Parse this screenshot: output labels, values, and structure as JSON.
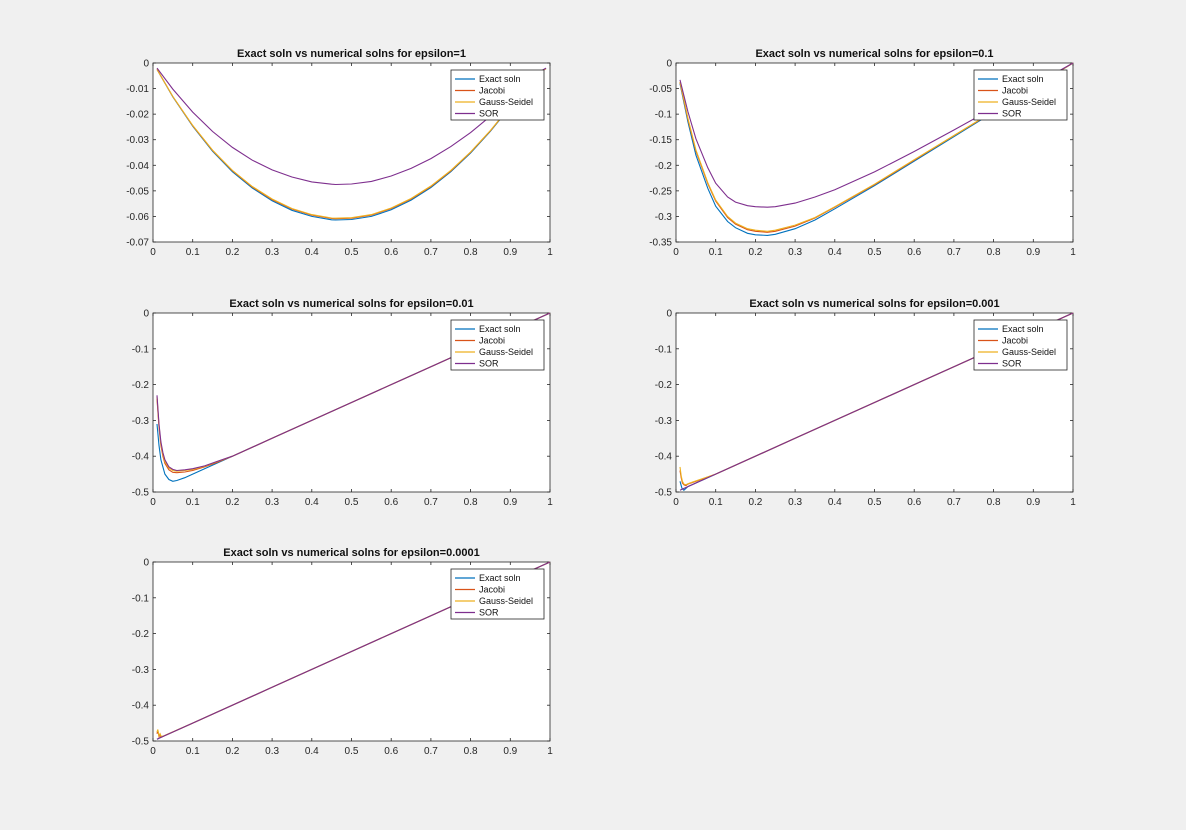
{
  "colors": {
    "background": "#f0f0f0",
    "axes_background": "#ffffff",
    "exact": "#0072BD",
    "jacobi": "#D95319",
    "gauss_seidel": "#EDB120",
    "sor": "#7E2F8E"
  },
  "chart_data": [
    {
      "type": "line",
      "title": "Exact soln vs numerical solns for epsilon=1",
      "xlim": [
        0,
        1
      ],
      "ylim": [
        -0.07,
        0
      ],
      "xticks": [
        "0",
        "0.1",
        "0.2",
        "0.3",
        "0.4",
        "0.5",
        "0.6",
        "0.7",
        "0.8",
        "0.9",
        "1"
      ],
      "yticks": [
        "0",
        "-0.01",
        "-0.02",
        "-0.03",
        "-0.04",
        "-0.05",
        "-0.06",
        "-0.07"
      ],
      "legend": [
        "Exact soln",
        "Jacobi",
        "Gauss-Seidel",
        "SOR"
      ],
      "legend_position": "top-right",
      "series": [
        {
          "name": "Exact soln",
          "x": [
            0.01,
            0.05,
            0.1,
            0.15,
            0.2,
            0.25,
            0.3,
            0.35,
            0.4,
            0.45,
            0.46,
            0.5,
            0.55,
            0.6,
            0.65,
            0.7,
            0.75,
            0.8,
            0.85,
            0.9,
            0.95,
            0.99
          ],
          "y": [
            -0.0025,
            -0.0132,
            -0.0247,
            -0.0345,
            -0.0425,
            -0.0489,
            -0.0539,
            -0.0576,
            -0.06,
            -0.0613,
            -0.0614,
            -0.0612,
            -0.06,
            -0.0574,
            -0.0536,
            -0.0487,
            -0.0425,
            -0.0352,
            -0.0267,
            -0.0171,
            -0.0064,
            -0.0022
          ]
        },
        {
          "name": "Jacobi",
          "x": [
            0.01,
            0.05,
            0.1,
            0.15,
            0.2,
            0.25,
            0.3,
            0.35,
            0.4,
            0.45,
            0.46,
            0.5,
            0.55,
            0.6,
            0.65,
            0.7,
            0.75,
            0.8,
            0.85,
            0.9,
            0.95,
            0.99
          ],
          "y": [
            -0.0025,
            -0.0131,
            -0.0245,
            -0.0342,
            -0.0421,
            -0.0485,
            -0.0534,
            -0.0571,
            -0.0595,
            -0.0608,
            -0.0609,
            -0.0607,
            -0.0595,
            -0.0569,
            -0.0532,
            -0.0483,
            -0.0422,
            -0.0349,
            -0.0265,
            -0.0169,
            -0.0063,
            -0.0022
          ]
        },
        {
          "name": "Gauss-Seidel",
          "x": [
            0.01,
            0.05,
            0.1,
            0.15,
            0.2,
            0.25,
            0.3,
            0.35,
            0.4,
            0.45,
            0.46,
            0.5,
            0.55,
            0.6,
            0.65,
            0.7,
            0.75,
            0.8,
            0.85,
            0.9,
            0.95,
            0.99
          ],
          "y": [
            -0.0025,
            -0.0131,
            -0.0244,
            -0.0341,
            -0.042,
            -0.0483,
            -0.0532,
            -0.0569,
            -0.0593,
            -0.0606,
            -0.0607,
            -0.0605,
            -0.0593,
            -0.0567,
            -0.053,
            -0.0481,
            -0.042,
            -0.0348,
            -0.0264,
            -0.0169,
            -0.0063,
            -0.0022
          ]
        },
        {
          "name": "SOR",
          "x": [
            0.01,
            0.05,
            0.1,
            0.15,
            0.2,
            0.25,
            0.3,
            0.35,
            0.4,
            0.45,
            0.46,
            0.5,
            0.55,
            0.6,
            0.65,
            0.7,
            0.75,
            0.8,
            0.85,
            0.9,
            0.95,
            0.99
          ],
          "y": [
            -0.002,
            -0.0102,
            -0.0192,
            -0.0268,
            -0.033,
            -0.038,
            -0.0418,
            -0.0446,
            -0.0465,
            -0.0474,
            -0.0475,
            -0.0473,
            -0.0463,
            -0.0442,
            -0.0412,
            -0.0374,
            -0.0327,
            -0.0272,
            -0.0208,
            -0.0135,
            -0.0055,
            -0.002
          ]
        }
      ]
    },
    {
      "type": "line",
      "title": "Exact soln vs numerical solns for epsilon=0.1",
      "xlim": [
        0,
        1
      ],
      "ylim": [
        -0.35,
        0
      ],
      "xticks": [
        "0",
        "0.1",
        "0.2",
        "0.3",
        "0.4",
        "0.5",
        "0.6",
        "0.7",
        "0.8",
        "0.9",
        "1"
      ],
      "yticks": [
        "0",
        "-0.05",
        "-0.1",
        "-0.15",
        "-0.2",
        "-0.25",
        "-0.3",
        "-0.35"
      ],
      "legend": [
        "Exact soln",
        "Jacobi",
        "Gauss-Seidel",
        "SOR"
      ],
      "legend_position": "top-right",
      "series": [
        {
          "name": "Exact soln",
          "x": [
            0.01,
            0.03,
            0.05,
            0.08,
            0.1,
            0.13,
            0.15,
            0.18,
            0.2,
            0.23,
            0.25,
            0.3,
            0.35,
            0.4,
            0.5,
            0.6,
            0.7,
            0.8,
            0.9,
            1.0
          ],
          "y": [
            -0.04,
            -0.115,
            -0.18,
            -0.245,
            -0.28,
            -0.31,
            -0.322,
            -0.333,
            -0.336,
            -0.337,
            -0.335,
            -0.324,
            -0.307,
            -0.285,
            -0.24,
            -0.192,
            -0.144,
            -0.096,
            -0.048,
            0.0
          ]
        },
        {
          "name": "Jacobi",
          "x": [
            0.01,
            0.03,
            0.05,
            0.08,
            0.1,
            0.13,
            0.15,
            0.18,
            0.2,
            0.23,
            0.25,
            0.3,
            0.35,
            0.4,
            0.5,
            0.6,
            0.7,
            0.8,
            0.9,
            1.0
          ],
          "y": [
            -0.038,
            -0.11,
            -0.172,
            -0.236,
            -0.27,
            -0.302,
            -0.315,
            -0.326,
            -0.329,
            -0.331,
            -0.329,
            -0.319,
            -0.303,
            -0.282,
            -0.238,
            -0.19,
            -0.142,
            -0.095,
            -0.047,
            0.0
          ]
        },
        {
          "name": "Gauss-Seidel",
          "x": [
            0.01,
            0.03,
            0.05,
            0.08,
            0.1,
            0.13,
            0.15,
            0.18,
            0.2,
            0.23,
            0.25,
            0.3,
            0.35,
            0.4,
            0.5,
            0.6,
            0.7,
            0.8,
            0.9,
            1.0
          ],
          "y": [
            -0.037,
            -0.108,
            -0.17,
            -0.234,
            -0.268,
            -0.3,
            -0.313,
            -0.324,
            -0.327,
            -0.329,
            -0.327,
            -0.317,
            -0.302,
            -0.281,
            -0.237,
            -0.189,
            -0.142,
            -0.094,
            -0.047,
            0.0
          ]
        },
        {
          "name": "SOR",
          "x": [
            0.01,
            0.03,
            0.05,
            0.08,
            0.1,
            0.13,
            0.15,
            0.18,
            0.2,
            0.23,
            0.25,
            0.3,
            0.35,
            0.4,
            0.5,
            0.6,
            0.7,
            0.8,
            0.9,
            1.0
          ],
          "y": [
            -0.033,
            -0.095,
            -0.148,
            -0.205,
            -0.235,
            -0.262,
            -0.272,
            -0.279,
            -0.281,
            -0.282,
            -0.281,
            -0.274,
            -0.262,
            -0.248,
            -0.213,
            -0.173,
            -0.131,
            -0.088,
            -0.044,
            0.0
          ]
        }
      ]
    },
    {
      "type": "line",
      "title": "Exact soln vs numerical solns for epsilon=0.01",
      "xlim": [
        0,
        1
      ],
      "ylim": [
        -0.5,
        0
      ],
      "xticks": [
        "0",
        "0.1",
        "0.2",
        "0.3",
        "0.4",
        "0.5",
        "0.6",
        "0.7",
        "0.8",
        "0.9",
        "1"
      ],
      "yticks": [
        "0",
        "-0.1",
        "-0.2",
        "-0.3",
        "-0.4",
        "-0.5"
      ],
      "legend": [
        "Exact soln",
        "Jacobi",
        "Gauss-Seidel",
        "SOR"
      ],
      "legend_position": "top-right",
      "series": [
        {
          "name": "Exact soln",
          "x": [
            0.01,
            0.015,
            0.02,
            0.03,
            0.04,
            0.05,
            0.06,
            0.08,
            0.1,
            0.13,
            0.16,
            0.2,
            0.3,
            0.5,
            0.7,
            0.9,
            1.0
          ],
          "y": [
            -0.31,
            -0.37,
            -0.41,
            -0.45,
            -0.465,
            -0.47,
            -0.468,
            -0.46,
            -0.45,
            -0.435,
            -0.42,
            -0.4,
            -0.35,
            -0.25,
            -0.15,
            -0.05,
            0.0
          ]
        },
        {
          "name": "Jacobi",
          "x": [
            0.01,
            0.015,
            0.02,
            0.025,
            0.03,
            0.04,
            0.05,
            0.06,
            0.08,
            0.1,
            0.13,
            0.16,
            0.2,
            0.3,
            0.5,
            0.7,
            0.9,
            1.0
          ],
          "y": [
            -0.24,
            -0.32,
            -0.37,
            -0.4,
            -0.42,
            -0.438,
            -0.445,
            -0.446,
            -0.444,
            -0.44,
            -0.43,
            -0.418,
            -0.4,
            -0.35,
            -0.25,
            -0.15,
            -0.05,
            0.0
          ]
        },
        {
          "name": "Gauss-Seidel",
          "x": [
            0.01,
            0.015,
            0.02,
            0.025,
            0.03,
            0.04,
            0.05,
            0.06,
            0.08,
            0.1,
            0.13,
            0.16,
            0.2,
            0.3,
            0.5,
            0.7,
            0.9,
            1.0
          ],
          "y": [
            -0.235,
            -0.315,
            -0.365,
            -0.395,
            -0.415,
            -0.433,
            -0.44,
            -0.442,
            -0.44,
            -0.437,
            -0.428,
            -0.416,
            -0.4,
            -0.35,
            -0.25,
            -0.15,
            -0.05,
            0.0
          ]
        },
        {
          "name": "SOR",
          "x": [
            0.01,
            0.015,
            0.02,
            0.025,
            0.03,
            0.04,
            0.05,
            0.06,
            0.08,
            0.1,
            0.13,
            0.16,
            0.2,
            0.3,
            0.5,
            0.7,
            0.9,
            1.0
          ],
          "y": [
            -0.23,
            -0.31,
            -0.36,
            -0.39,
            -0.41,
            -0.43,
            -0.437,
            -0.44,
            -0.438,
            -0.435,
            -0.427,
            -0.415,
            -0.4,
            -0.35,
            -0.25,
            -0.15,
            -0.05,
            0.0
          ]
        }
      ]
    },
    {
      "type": "line",
      "title": "Exact soln vs numerical solns for epsilon=0.001",
      "xlim": [
        0,
        1
      ],
      "ylim": [
        -0.5,
        0
      ],
      "xticks": [
        "0",
        "0.1",
        "0.2",
        "0.3",
        "0.4",
        "0.5",
        "0.6",
        "0.7",
        "0.8",
        "0.9",
        "1"
      ],
      "yticks": [
        "0",
        "-0.1",
        "-0.2",
        "-0.3",
        "-0.4",
        "-0.5"
      ],
      "legend": [
        "Exact soln",
        "Jacobi",
        "Gauss-Seidel",
        "SOR"
      ],
      "legend_position": "top-right",
      "series": [
        {
          "name": "Exact soln",
          "x": [
            0.01,
            0.015,
            0.02,
            0.03,
            0.05,
            0.1,
            0.3,
            0.5,
            0.7,
            0.9,
            1.0
          ],
          "y": [
            -0.47,
            -0.49,
            -0.495,
            -0.485,
            -0.475,
            -0.45,
            -0.35,
            -0.25,
            -0.15,
            -0.05,
            0.0
          ]
        },
        {
          "name": "Jacobi",
          "x": [
            0.01,
            0.013,
            0.016,
            0.02,
            0.025,
            0.03,
            0.04,
            0.05,
            0.1,
            0.3,
            0.5,
            0.7,
            0.9,
            1.0
          ],
          "y": [
            -0.44,
            -0.46,
            -0.475,
            -0.48,
            -0.482,
            -0.478,
            -0.474,
            -0.47,
            -0.45,
            -0.35,
            -0.25,
            -0.15,
            -0.05,
            0.0
          ]
        },
        {
          "name": "Gauss-Seidel",
          "x": [
            0.01,
            0.013,
            0.016,
            0.02,
            0.025,
            0.03,
            0.04,
            0.05,
            0.1,
            0.3,
            0.5,
            0.7,
            0.9,
            1.0
          ],
          "y": [
            -0.43,
            -0.455,
            -0.47,
            -0.478,
            -0.48,
            -0.477,
            -0.473,
            -0.469,
            -0.45,
            -0.35,
            -0.25,
            -0.15,
            -0.05,
            0.0
          ]
        },
        {
          "name": "SOR",
          "x": [
            0.01,
            0.02,
            0.03,
            0.05,
            0.1,
            0.3,
            0.5,
            0.7,
            0.9,
            1.0
          ],
          "y": [
            -0.495,
            -0.49,
            -0.485,
            -0.475,
            -0.45,
            -0.35,
            -0.25,
            -0.15,
            -0.05,
            0.0
          ]
        }
      ]
    },
    {
      "type": "line",
      "title": "Exact soln vs numerical solns for epsilon=0.0001",
      "xlim": [
        0,
        1
      ],
      "ylim": [
        -0.5,
        0
      ],
      "xticks": [
        "0",
        "0.1",
        "0.2",
        "0.3",
        "0.4",
        "0.5",
        "0.6",
        "0.7",
        "0.8",
        "0.9",
        "1"
      ],
      "yticks": [
        "0",
        "-0.1",
        "-0.2",
        "-0.3",
        "-0.4",
        "-0.5"
      ],
      "legend": [
        "Exact soln",
        "Jacobi",
        "Gauss-Seidel",
        "SOR"
      ],
      "legend_position": "top-right",
      "series": [
        {
          "name": "Exact soln",
          "x": [
            0.01,
            0.02,
            0.1,
            0.3,
            0.5,
            0.7,
            0.9,
            1.0
          ],
          "y": [
            -0.495,
            -0.49,
            -0.45,
            -0.35,
            -0.25,
            -0.15,
            -0.05,
            0.0
          ]
        },
        {
          "name": "Jacobi",
          "x": [
            0.01,
            0.012,
            0.015,
            0.018,
            0.02,
            0.1,
            0.3,
            0.5,
            0.7,
            0.9,
            1.0
          ],
          "y": [
            -0.48,
            -0.47,
            -0.488,
            -0.482,
            -0.49,
            -0.45,
            -0.35,
            -0.25,
            -0.15,
            -0.05,
            0.0
          ]
        },
        {
          "name": "Gauss-Seidel",
          "x": [
            0.01,
            0.012,
            0.015,
            0.018,
            0.02,
            0.025,
            0.1,
            0.3,
            0.5,
            0.7,
            0.9,
            1.0
          ],
          "y": [
            -0.475,
            -0.468,
            -0.485,
            -0.48,
            -0.486,
            -0.487,
            -0.45,
            -0.35,
            -0.25,
            -0.15,
            -0.05,
            0.0
          ]
        },
        {
          "name": "SOR",
          "x": [
            0.01,
            0.02,
            0.1,
            0.3,
            0.5,
            0.7,
            0.9,
            1.0
          ],
          "y": [
            -0.495,
            -0.49,
            -0.45,
            -0.35,
            -0.25,
            -0.15,
            -0.05,
            0.0
          ]
        }
      ]
    }
  ]
}
